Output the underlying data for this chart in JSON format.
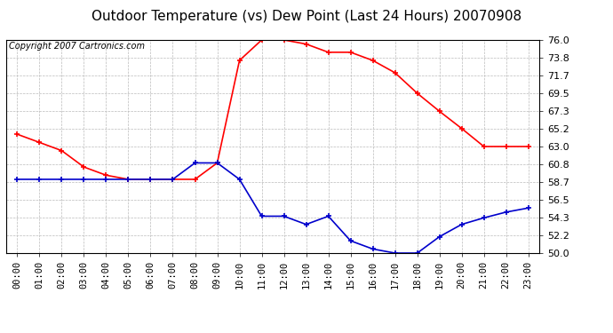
{
  "title": "Outdoor Temperature (vs) Dew Point (Last 24 Hours) 20070908",
  "copyright_text": "Copyright 2007 Cartronics.com",
  "hours": [
    "00:00",
    "01:00",
    "02:00",
    "03:00",
    "04:00",
    "05:00",
    "06:00",
    "07:00",
    "08:00",
    "09:00",
    "10:00",
    "11:00",
    "12:00",
    "13:00",
    "14:00",
    "15:00",
    "16:00",
    "17:00",
    "18:00",
    "19:00",
    "20:00",
    "21:00",
    "22:00",
    "23:00"
  ],
  "temp": [
    64.5,
    63.5,
    62.5,
    60.5,
    59.5,
    59.0,
    59.0,
    59.0,
    59.0,
    61.0,
    73.5,
    76.0,
    76.0,
    75.5,
    74.5,
    74.5,
    73.5,
    72.0,
    69.5,
    67.3,
    65.2,
    63.0,
    63.0,
    63.0
  ],
  "dew": [
    59.0,
    59.0,
    59.0,
    59.0,
    59.0,
    59.0,
    59.0,
    59.0,
    61.0,
    61.0,
    59.0,
    54.5,
    54.5,
    53.5,
    54.5,
    51.5,
    50.5,
    50.0,
    50.0,
    52.0,
    53.5,
    54.3,
    55.0,
    55.5
  ],
  "temp_color": "#ff0000",
  "dew_color": "#0000cc",
  "bg_color": "#ffffff",
  "grid_color": "#bbbbbb",
  "ylim_min": 50.0,
  "ylim_max": 76.0,
  "yticks": [
    50.0,
    52.2,
    54.3,
    56.5,
    58.7,
    60.8,
    63.0,
    65.2,
    67.3,
    69.5,
    71.7,
    73.8,
    76.0
  ],
  "title_fontsize": 11,
  "copyright_fontsize": 7,
  "tick_fontsize": 7.5,
  "ytick_fontsize": 8
}
